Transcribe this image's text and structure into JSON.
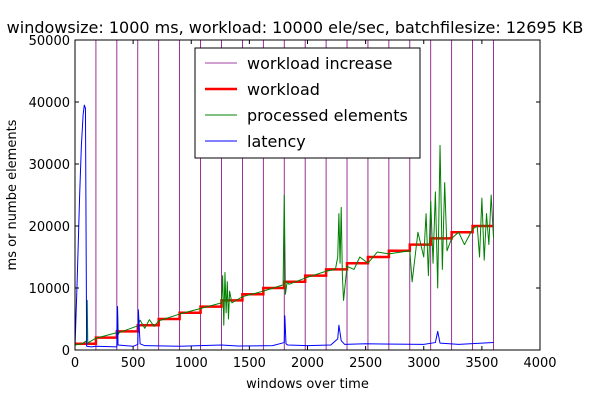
{
  "chart_data": {
    "type": "line",
    "title": "windowsize: 1000 ms, workload: 10000 ele/sec, batchfilesize: 12695 KB",
    "xlabel": "windows over time",
    "ylabel": "ms or numbe elements",
    "xlim": [
      0,
      4000
    ],
    "ylim": [
      0,
      50000
    ],
    "xticks": [
      0,
      500,
      1000,
      1500,
      2000,
      2500,
      3000,
      3500,
      4000
    ],
    "yticks": [
      0,
      10000,
      20000,
      30000,
      40000,
      50000
    ],
    "xtick_labels": [
      "0",
      "500",
      "1000",
      "1500",
      "2000",
      "2500",
      "3000",
      "3500",
      "4000"
    ],
    "ytick_labels": [
      "0",
      "10000",
      "20000",
      "30000",
      "40000",
      "50000"
    ],
    "grid": false,
    "legend_position": "top-center",
    "series": [
      {
        "name": "workload increase",
        "kind": "vlines",
        "color": "#800080",
        "x": [
          180,
          360,
          540,
          720,
          900,
          1080,
          1260,
          1440,
          1620,
          1800,
          1980,
          2160,
          2340,
          2520,
          2700,
          2880,
          3060,
          3240,
          3420,
          3600
        ]
      },
      {
        "name": "workload",
        "kind": "step",
        "color": "#ff0000",
        "x": [
          0,
          180,
          360,
          540,
          720,
          900,
          1080,
          1260,
          1440,
          1620,
          1800,
          1980,
          2160,
          2340,
          2520,
          2700,
          2880,
          3060,
          3240,
          3420,
          3600
        ],
        "y": [
          1000,
          2000,
          3000,
          4000,
          5000,
          6000,
          7000,
          8000,
          9000,
          10000,
          11000,
          12000,
          13000,
          14000,
          15000,
          16000,
          17000,
          18000,
          19000,
          20000,
          20000
        ]
      },
      {
        "name": "processed elements",
        "kind": "line",
        "color": "#008000",
        "x": [
          0,
          60,
          100,
          105,
          110,
          115,
          180,
          360,
          365,
          372,
          380,
          540,
          560,
          600,
          640,
          680,
          720,
          900,
          1080,
          1260,
          1270,
          1280,
          1290,
          1300,
          1310,
          1320,
          1330,
          1340,
          1350,
          1440,
          1620,
          1790,
          1800,
          1810,
          1825,
          1840,
          1980,
          2160,
          2240,
          2260,
          2270,
          2280,
          2290,
          2300,
          2310,
          2340,
          2400,
          2450,
          2520,
          2600,
          2700,
          2880,
          2900,
          2950,
          3000,
          3020,
          3040,
          3060,
          3080,
          3100,
          3120,
          3140,
          3160,
          3180,
          3200,
          3240,
          3300,
          3350,
          3420,
          3460,
          3480,
          3500,
          3520,
          3540,
          3560,
          3580,
          3600
        ],
        "y": [
          800,
          1000,
          1500,
          8000,
          1000,
          1200,
          1900,
          2800,
          7000,
          2500,
          2800,
          3900,
          4800,
          3500,
          4900,
          3800,
          4700,
          5800,
          6700,
          7600,
          12000,
          4000,
          12500,
          6000,
          11000,
          5000,
          9500,
          8500,
          7600,
          8600,
          9500,
          10500,
          25000,
          9000,
          11000,
          10600,
          11600,
          12700,
          13000,
          15000,
          22000,
          14000,
          23000,
          12000,
          8000,
          13500,
          13000,
          15000,
          14000,
          15800,
          15500,
          16000,
          11000,
          19000,
          15000,
          22000,
          12000,
          24000,
          14000,
          25500,
          10000,
          33000,
          13000,
          27000,
          16000,
          18000,
          19000,
          17000,
          19500,
          20000,
          15000,
          24500,
          14500,
          22000,
          17000,
          25000,
          18000
        ]
      },
      {
        "name": "latency",
        "kind": "line",
        "color": "#0000ff",
        "x": [
          0,
          20,
          40,
          55,
          70,
          80,
          90,
          100,
          140,
          180,
          360,
          362,
          366,
          370,
          500,
          540,
          545,
          560,
          600,
          900,
          1080,
          1260,
          1400,
          1700,
          1800,
          1805,
          1815,
          1830,
          2000,
          2200,
          2260,
          2270,
          2290,
          2320,
          2500,
          3000,
          3100,
          3120,
          3140,
          3300,
          3600
        ],
        "y": [
          500,
          12000,
          25000,
          33000,
          38000,
          39500,
          39000,
          600,
          500,
          600,
          500,
          5000,
          7000,
          800,
          600,
          900,
          6500,
          1000,
          700,
          600,
          700,
          800,
          650,
          700,
          1200,
          5500,
          1000,
          800,
          700,
          800,
          1800,
          4000,
          1500,
          900,
          1000,
          900,
          1200,
          3000,
          1100,
          900,
          1200
        ]
      }
    ]
  }
}
